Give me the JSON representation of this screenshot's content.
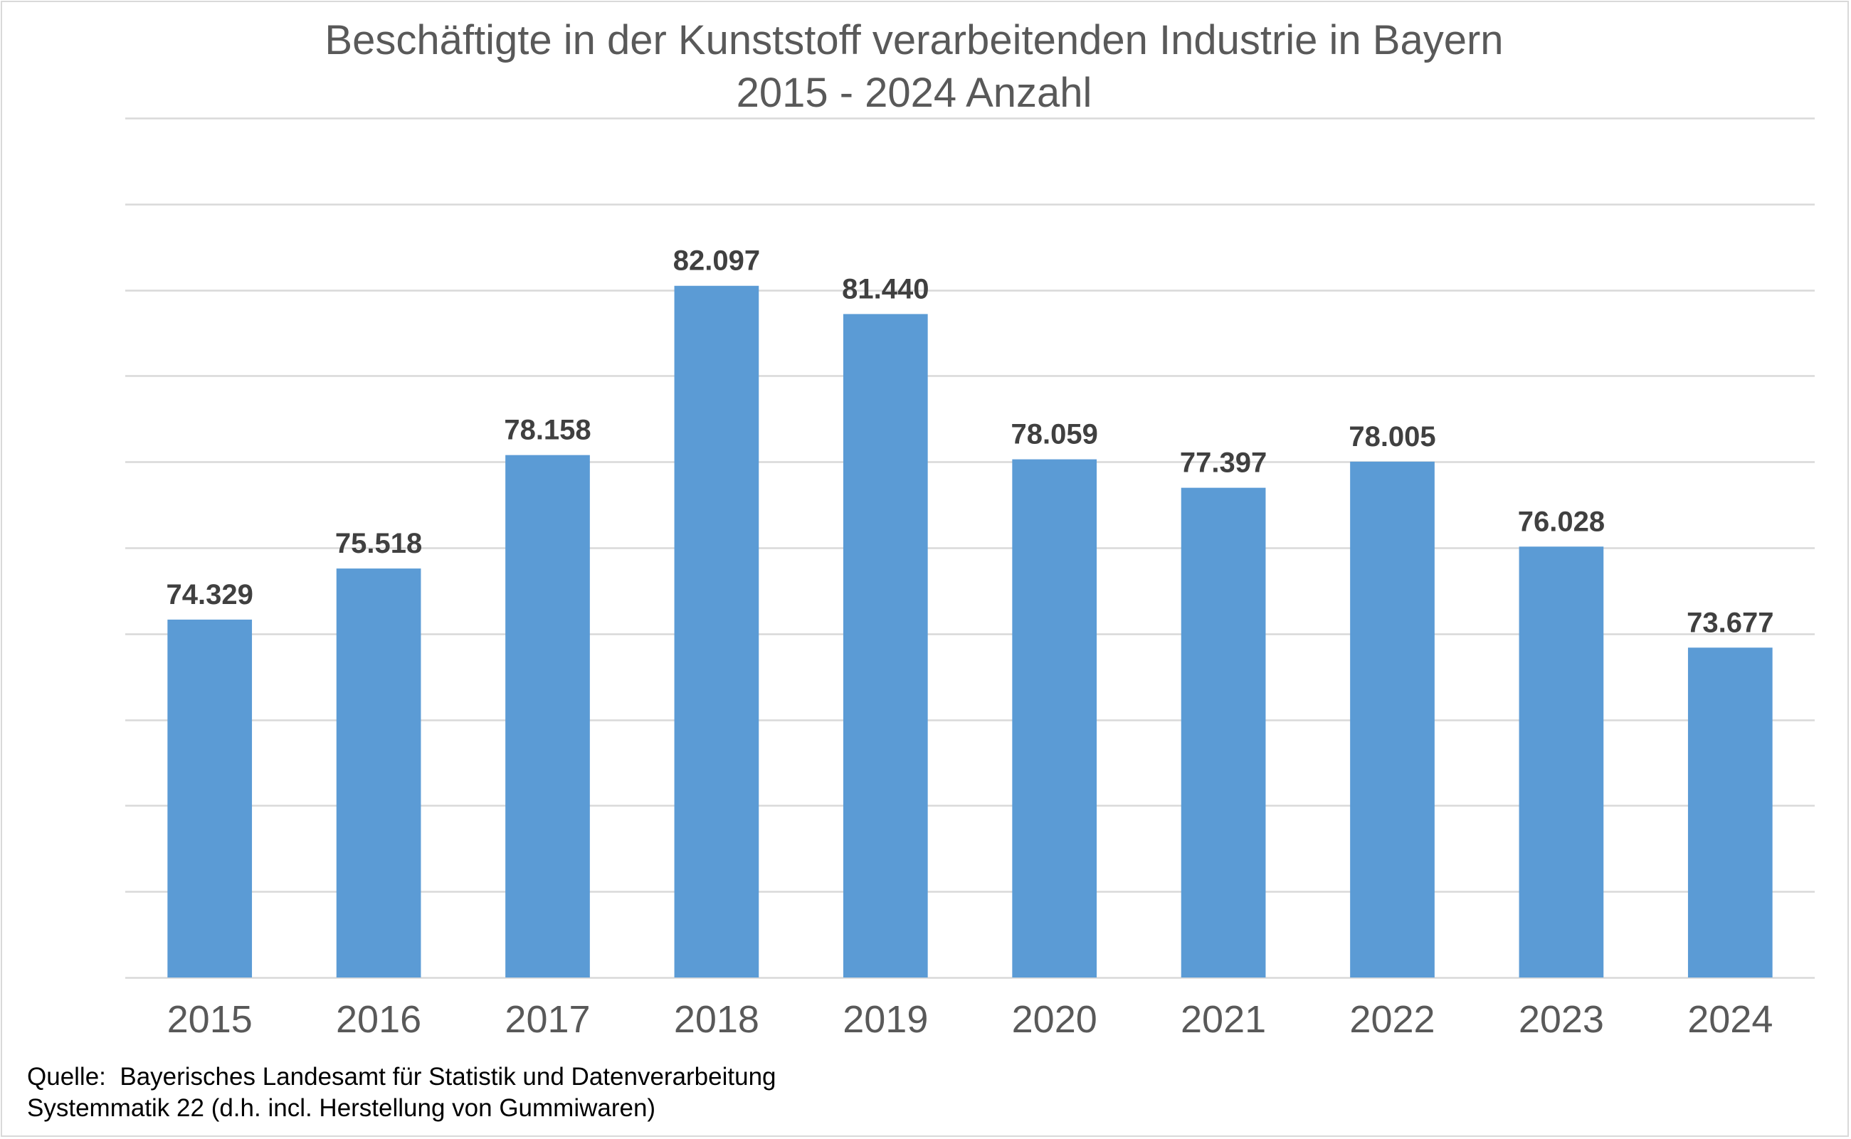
{
  "chart_data": {
    "type": "bar",
    "title": "Beschäftigte in der Kunststoff verarbeitenden Industrie in Bayern",
    "subtitle": "2015 - 2024 Anzahl",
    "categories": [
      "2015",
      "2016",
      "2017",
      "2018",
      "2019",
      "2020",
      "2021",
      "2022",
      "2023",
      "2024"
    ],
    "values": [
      74329,
      75518,
      78158,
      82097,
      81440,
      78059,
      77397,
      78005,
      76028,
      73677
    ],
    "data_labels": [
      "74.329",
      "75.518",
      "78.158",
      "82.097",
      "81.440",
      "78.059",
      "77.397",
      "78.005",
      "76.028",
      "73.677"
    ],
    "xlabel": "",
    "ylabel": "",
    "ylim": [
      66000,
      86000
    ],
    "y_gridline_step": 2000,
    "y_axis_visible": false,
    "grid": true,
    "legend": "none",
    "bar_color": "#5B9BD5",
    "label_color": "#404040",
    "grid_color": "#d9d9d9"
  },
  "footer": {
    "source_line": "Quelle:  Bayerisches Landesamt für Statistik und Datenverarbeitung",
    "note_line": "Systemmatik 22 (d.h. incl. Herstellung von Gummiwaren)"
  }
}
